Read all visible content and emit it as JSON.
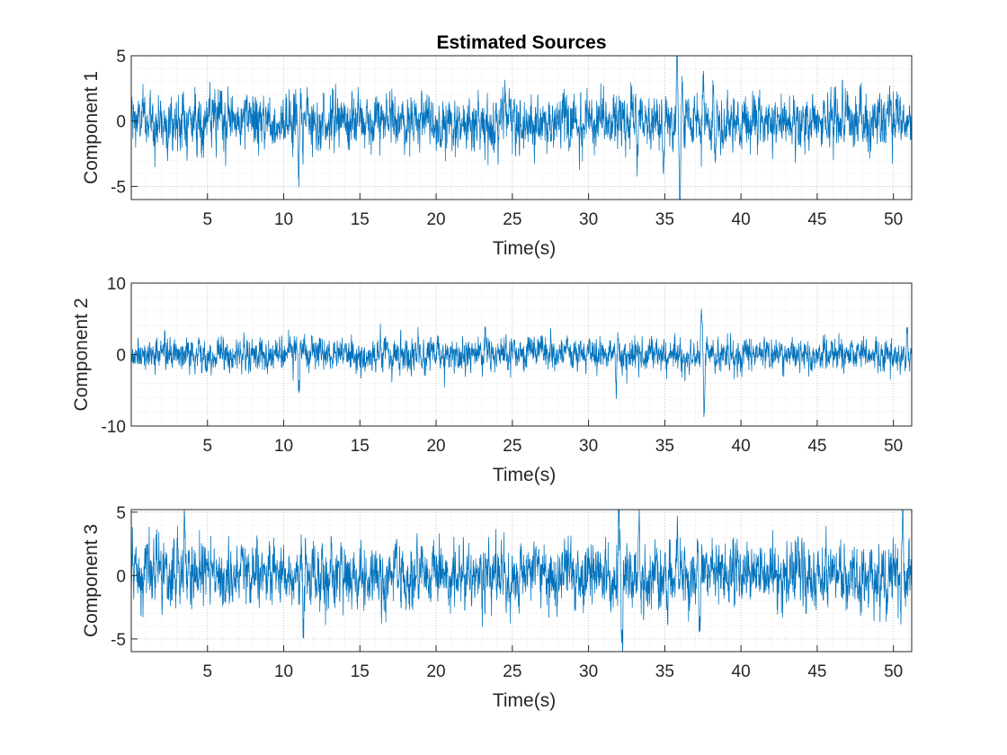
{
  "figure_title": "Estimated Sources",
  "colors": {
    "series": "#0072BD",
    "axis": "#262626"
  },
  "chart_data": [
    {
      "type": "line",
      "ylabel": "Component 1",
      "xlabel": "Time(s)",
      "xlim": [
        0,
        51.2
      ],
      "ylim": [
        -6,
        5
      ],
      "xticks": [
        5,
        10,
        15,
        20,
        25,
        30,
        35,
        40,
        45,
        50
      ],
      "xtick_labels": [
        "5",
        "10",
        "15",
        "20",
        "25",
        "30",
        "35",
        "40",
        "45",
        "50"
      ],
      "yticks": [
        -5,
        0,
        5
      ],
      "ytick_labels": [
        "-5",
        "0",
        "5"
      ],
      "grid": true,
      "minor_grid": true,
      "series": [
        {
          "x_range": [
            0,
            51.2
          ],
          "baseline_std": 1.0,
          "events": [
            {
              "t": 11.0,
              "amplitude": -3.3
            },
            {
              "t": 33.2,
              "amplitude": -3.5
            },
            {
              "t": 34.9,
              "amplitude": -4.2
            },
            {
              "t": 35.8,
              "amplitude": 4.7
            },
            {
              "t": 36.0,
              "amplitude": -5.9
            },
            {
              "t": 37.5,
              "amplitude": 3.8
            },
            {
              "t": 38.3,
              "amplitude": -3.4
            }
          ]
        }
      ]
    },
    {
      "type": "line",
      "ylabel": "Component 2",
      "xlabel": "Time(s)",
      "xlim": [
        0,
        51.2
      ],
      "ylim": [
        -10,
        10
      ],
      "xticks": [
        5,
        10,
        15,
        20,
        25,
        30,
        35,
        40,
        45,
        50
      ],
      "xtick_labels": [
        "5",
        "10",
        "15",
        "20",
        "25",
        "30",
        "35",
        "40",
        "45",
        "50"
      ],
      "yticks": [
        -10,
        0,
        10
      ],
      "ytick_labels": [
        "-10",
        "0",
        "10"
      ],
      "grid": true,
      "minor_grid": true,
      "series": [
        {
          "x_range": [
            0,
            51.2
          ],
          "baseline_std": 1.1,
          "events": [
            {
              "t": 11.0,
              "amplitude": -4.3
            },
            {
              "t": 23.2,
              "amplitude": 4.2
            },
            {
              "t": 27.5,
              "amplitude": 3.3
            },
            {
              "t": 31.8,
              "amplitude": -4.5
            },
            {
              "t": 37.4,
              "amplitude": 7.2
            },
            {
              "t": 37.6,
              "amplitude": -8.0
            },
            {
              "t": 50.9,
              "amplitude": 4.0
            }
          ]
        }
      ]
    },
    {
      "type": "line",
      "ylabel": "Component 3",
      "xlabel": "Time(s)",
      "xlim": [
        0,
        51.2
      ],
      "ylim": [
        -6,
        5.2
      ],
      "xticks": [
        5,
        10,
        15,
        20,
        25,
        30,
        35,
        40,
        45,
        50
      ],
      "xtick_labels": [
        "5",
        "10",
        "15",
        "20",
        "25",
        "30",
        "35",
        "40",
        "45",
        "50"
      ],
      "yticks": [
        -5,
        0,
        5
      ],
      "ytick_labels": [
        "-5",
        "0",
        "5"
      ],
      "grid": true,
      "minor_grid": true,
      "series": [
        {
          "x_range": [
            0,
            51.2
          ],
          "baseline_std": 1.2,
          "events": [
            {
              "t": 3.5,
              "amplitude": 3.8
            },
            {
              "t": 11.3,
              "amplitude": -4.9
            },
            {
              "t": 32.0,
              "amplitude": 5.2
            },
            {
              "t": 32.2,
              "amplitude": -6.0
            },
            {
              "t": 33.3,
              "amplitude": 5.0
            },
            {
              "t": 35.2,
              "amplitude": -4.3
            },
            {
              "t": 35.8,
              "amplitude": 4.8
            },
            {
              "t": 37.3,
              "amplitude": -5.6
            },
            {
              "t": 50.6,
              "amplitude": 5.0
            }
          ]
        }
      ]
    }
  ]
}
